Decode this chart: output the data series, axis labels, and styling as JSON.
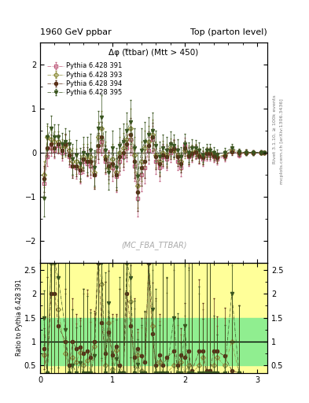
{
  "title_left": "1960 GeV ppbar",
  "title_right": "Top (parton level)",
  "plot_title": "Δφ (t̅tbar) (Mtt > 450)",
  "watermark": "(MC_FBA_TTBAR)",
  "right_label_top": "Rivet 3.1.10, ≥ 100k events",
  "right_label_bottom": "mcplots.cern.ch [arXiv:1306.3436]",
  "ylabel_ratio": "Ratio to Pythia 6.428 391",
  "xlim": [
    0,
    3.14159
  ],
  "ylim_main": [
    -2.5,
    2.5
  ],
  "ylim_ratio": [
    0.35,
    2.65
  ],
  "yticks_ratio": [
    0.5,
    1.0,
    1.5,
    2.0,
    2.5
  ],
  "ytick_labels_ratio": [
    "0.5",
    "1",
    "1.5",
    "2",
    "2.5"
  ],
  "series": [
    {
      "label": "Pythia 6.428 391",
      "color": "#c06080",
      "marker": "s",
      "marker_filled": false,
      "linestyle": "-.",
      "x": [
        0.05,
        0.1,
        0.15,
        0.2,
        0.25,
        0.3,
        0.35,
        0.4,
        0.45,
        0.5,
        0.55,
        0.6,
        0.65,
        0.7,
        0.75,
        0.8,
        0.85,
        0.9,
        0.95,
        1.0,
        1.05,
        1.1,
        1.15,
        1.2,
        1.25,
        1.3,
        1.35,
        1.4,
        1.45,
        1.5,
        1.55,
        1.6,
        1.65,
        1.7,
        1.75,
        1.8,
        1.85,
        1.9,
        1.95,
        2.0,
        2.05,
        2.1,
        2.15,
        2.2,
        2.25,
        2.3,
        2.35,
        2.4,
        2.45,
        2.55,
        2.65,
        2.75,
        2.85,
        2.95,
        3.05,
        3.1
      ],
      "y": [
        -0.7,
        -0.1,
        0.1,
        0.05,
        0.15,
        0.0,
        0.2,
        -0.1,
        -0.3,
        -0.35,
        -0.45,
        -0.2,
        -0.25,
        -0.3,
        -0.5,
        0.05,
        0.25,
        -0.2,
        -0.25,
        -0.35,
        -0.55,
        -0.2,
        -0.1,
        0.1,
        0.3,
        -0.3,
        -1.05,
        -0.5,
        -0.35,
        0.05,
        0.3,
        -0.2,
        -0.35,
        -0.1,
        -0.15,
        0.0,
        0.1,
        -0.2,
        -0.35,
        0.15,
        -0.1,
        -0.05,
        0.0,
        -0.1,
        -0.15,
        -0.05,
        -0.05,
        -0.1,
        -0.15,
        -0.1,
        0.05,
        -0.05,
        0.0,
        0.0,
        0.0,
        0.0
      ],
      "yerr": [
        0.35,
        0.2,
        0.18,
        0.18,
        0.18,
        0.18,
        0.2,
        0.22,
        0.25,
        0.25,
        0.25,
        0.27,
        0.3,
        0.28,
        0.3,
        0.28,
        0.3,
        0.28,
        0.3,
        0.3,
        0.35,
        0.3,
        0.3,
        0.3,
        0.35,
        0.35,
        0.4,
        0.38,
        0.35,
        0.3,
        0.3,
        0.28,
        0.3,
        0.25,
        0.25,
        0.22,
        0.2,
        0.2,
        0.2,
        0.18,
        0.2,
        0.17,
        0.15,
        0.15,
        0.15,
        0.13,
        0.13,
        0.12,
        0.12,
        0.1,
        0.08,
        0.07,
        0.06,
        0.05,
        0.04,
        0.03
      ]
    },
    {
      "label": "Pythia 6.428 393",
      "color": "#909040",
      "marker": "D",
      "marker_filled": false,
      "linestyle": "-.",
      "x": [
        0.05,
        0.1,
        0.15,
        0.2,
        0.25,
        0.3,
        0.35,
        0.4,
        0.45,
        0.5,
        0.55,
        0.6,
        0.65,
        0.7,
        0.75,
        0.8,
        0.85,
        0.9,
        0.95,
        1.0,
        1.05,
        1.1,
        1.15,
        1.2,
        1.25,
        1.3,
        1.35,
        1.4,
        1.45,
        1.5,
        1.55,
        1.6,
        1.65,
        1.7,
        1.75,
        1.8,
        1.85,
        1.9,
        1.95,
        2.0,
        2.05,
        2.1,
        2.15,
        2.2,
        2.25,
        2.3,
        2.35,
        2.4,
        2.45,
        2.55,
        2.65,
        2.75,
        2.85,
        2.95,
        3.05,
        3.1
      ],
      "y": [
        -0.5,
        0.35,
        0.3,
        0.25,
        0.25,
        0.1,
        0.15,
        0.05,
        -0.2,
        -0.2,
        -0.35,
        -0.1,
        -0.15,
        -0.1,
        -0.45,
        0.35,
        0.55,
        -0.1,
        -0.35,
        -0.15,
        -0.45,
        0.0,
        0.1,
        0.3,
        0.55,
        -0.05,
        -0.75,
        -0.2,
        0.1,
        0.25,
        0.4,
        -0.05,
        -0.2,
        0.0,
        -0.05,
        0.1,
        0.05,
        -0.05,
        -0.2,
        0.05,
        -0.05,
        0.0,
        0.05,
        -0.05,
        -0.1,
        0.0,
        0.0,
        -0.05,
        -0.1,
        -0.05,
        0.05,
        0.0,
        0.0,
        0.0,
        0.0,
        0.0
      ],
      "yerr": [
        0.3,
        0.25,
        0.22,
        0.22,
        0.22,
        0.2,
        0.25,
        0.25,
        0.3,
        0.28,
        0.3,
        0.3,
        0.35,
        0.32,
        0.35,
        0.35,
        0.4,
        0.35,
        0.35,
        0.35,
        0.4,
        0.35,
        0.35,
        0.35,
        0.45,
        0.4,
        0.5,
        0.45,
        0.4,
        0.35,
        0.35,
        0.3,
        0.3,
        0.27,
        0.25,
        0.22,
        0.2,
        0.2,
        0.2,
        0.18,
        0.2,
        0.17,
        0.15,
        0.15,
        0.15,
        0.12,
        0.12,
        0.1,
        0.1,
        0.1,
        0.08,
        0.07,
        0.06,
        0.05,
        0.04,
        0.03
      ]
    },
    {
      "label": "Pythia 6.428 394",
      "color": "#5a3018",
      "marker": "o",
      "marker_filled": true,
      "linestyle": "-.",
      "x": [
        0.05,
        0.1,
        0.15,
        0.2,
        0.25,
        0.3,
        0.35,
        0.4,
        0.45,
        0.5,
        0.55,
        0.6,
        0.65,
        0.7,
        0.75,
        0.8,
        0.85,
        0.9,
        0.95,
        1.0,
        1.05,
        1.1,
        1.15,
        1.2,
        1.25,
        1.3,
        1.35,
        1.4,
        1.45,
        1.5,
        1.55,
        1.6,
        1.65,
        1.7,
        1.75,
        1.8,
        1.85,
        1.9,
        1.95,
        2.0,
        2.05,
        2.1,
        2.15,
        2.2,
        2.25,
        2.3,
        2.35,
        2.4,
        2.45,
        2.55,
        2.65,
        2.75,
        2.85,
        2.95,
        3.05,
        3.1
      ],
      "y": [
        -0.6,
        0.1,
        0.2,
        0.1,
        0.2,
        0.05,
        0.2,
        -0.05,
        -0.3,
        -0.3,
        -0.4,
        -0.15,
        -0.2,
        -0.2,
        -0.5,
        0.15,
        0.35,
        -0.15,
        -0.3,
        -0.25,
        -0.5,
        -0.1,
        0.0,
        0.2,
        0.4,
        -0.2,
        -0.9,
        -0.35,
        -0.2,
        0.15,
        0.35,
        -0.1,
        -0.25,
        -0.05,
        -0.1,
        0.05,
        0.08,
        -0.1,
        -0.25,
        0.1,
        -0.08,
        -0.02,
        0.02,
        -0.08,
        -0.12,
        -0.02,
        -0.02,
        -0.08,
        -0.12,
        -0.07,
        0.02,
        0.0,
        0.0,
        0.0,
        0.0,
        0.0
      ],
      "yerr": [
        0.3,
        0.2,
        0.2,
        0.2,
        0.2,
        0.18,
        0.22,
        0.22,
        0.27,
        0.25,
        0.27,
        0.27,
        0.32,
        0.3,
        0.32,
        0.3,
        0.35,
        0.3,
        0.32,
        0.3,
        0.37,
        0.32,
        0.32,
        0.32,
        0.38,
        0.37,
        0.42,
        0.4,
        0.37,
        0.32,
        0.32,
        0.28,
        0.3,
        0.25,
        0.25,
        0.2,
        0.2,
        0.2,
        0.2,
        0.17,
        0.2,
        0.17,
        0.15,
        0.15,
        0.15,
        0.13,
        0.13,
        0.11,
        0.11,
        0.1,
        0.08,
        0.07,
        0.06,
        0.05,
        0.04,
        0.03
      ]
    },
    {
      "label": "Pythia 6.428 395",
      "color": "#3a5520",
      "marker": "v",
      "marker_filled": true,
      "linestyle": "-.",
      "x": [
        0.05,
        0.1,
        0.15,
        0.2,
        0.25,
        0.3,
        0.35,
        0.4,
        0.45,
        0.5,
        0.55,
        0.6,
        0.65,
        0.7,
        0.75,
        0.8,
        0.85,
        0.9,
        0.95,
        1.0,
        1.05,
        1.1,
        1.15,
        1.2,
        1.25,
        1.3,
        1.35,
        1.4,
        1.45,
        1.5,
        1.55,
        1.6,
        1.65,
        1.7,
        1.75,
        1.8,
        1.85,
        1.9,
        1.95,
        2.0,
        2.05,
        2.1,
        2.15,
        2.2,
        2.25,
        2.3,
        2.35,
        2.4,
        2.45,
        2.55,
        2.65,
        2.75,
        2.85,
        2.95,
        3.05,
        3.1
      ],
      "y": [
        -1.05,
        0.35,
        0.55,
        0.35,
        0.35,
        0.2,
        0.25,
        0.2,
        -0.15,
        -0.05,
        -0.25,
        0.0,
        -0.05,
        0.05,
        -0.35,
        0.55,
        0.8,
        0.05,
        -0.45,
        0.1,
        -0.35,
        0.15,
        0.25,
        0.5,
        0.7,
        0.1,
        -0.55,
        0.05,
        0.25,
        0.4,
        0.5,
        0.15,
        -0.1,
        0.1,
        0.05,
        0.2,
        0.15,
        0.05,
        -0.1,
        0.2,
        0.0,
        0.1,
        0.1,
        0.05,
        -0.05,
        0.05,
        0.05,
        0.0,
        -0.05,
        0.0,
        0.1,
        0.02,
        0.0,
        0.0,
        0.0,
        0.0
      ],
      "yerr": [
        0.4,
        0.3,
        0.28,
        0.28,
        0.28,
        0.25,
        0.3,
        0.3,
        0.35,
        0.33,
        0.35,
        0.35,
        0.4,
        0.38,
        0.4,
        0.4,
        0.5,
        0.42,
        0.4,
        0.4,
        0.45,
        0.4,
        0.4,
        0.4,
        0.5,
        0.45,
        0.55,
        0.5,
        0.45,
        0.4,
        0.4,
        0.35,
        0.35,
        0.3,
        0.3,
        0.27,
        0.25,
        0.25,
        0.22,
        0.22,
        0.22,
        0.2,
        0.18,
        0.18,
        0.17,
        0.15,
        0.15,
        0.12,
        0.12,
        0.1,
        0.09,
        0.07,
        0.06,
        0.05,
        0.04,
        0.03
      ]
    }
  ],
  "ratio_green_lo": 0.5,
  "ratio_green_hi": 1.5,
  "ratio_yellow_lo": 0.0,
  "ratio_yellow_hi": 3.0
}
